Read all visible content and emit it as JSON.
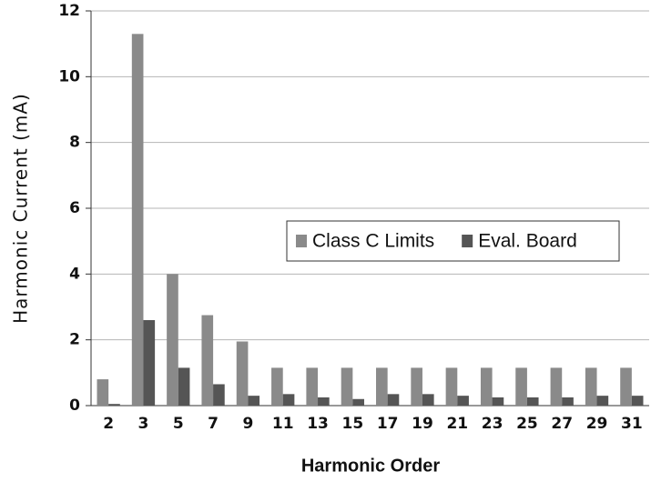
{
  "chart_data": {
    "type": "bar",
    "x_label": "Harmonic Order",
    "y_label": "Harmonic Current  (mA)",
    "categories": [
      "2",
      "3",
      "5",
      "7",
      "9",
      "11",
      "13",
      "15",
      "17",
      "19",
      "21",
      "23",
      "25",
      "27",
      "29",
      "31"
    ],
    "series": [
      {
        "name": "Class C Limits",
        "color": "#8a8a8a",
        "values": [
          0.8,
          11.3,
          4.0,
          2.75,
          1.95,
          1.15,
          1.15,
          1.15,
          1.15,
          1.15,
          1.15,
          1.15,
          1.15,
          1.15,
          1.15,
          1.15
        ]
      },
      {
        "name": "Eval. Board",
        "color": "#555555",
        "values": [
          0.05,
          2.6,
          1.15,
          0.65,
          0.3,
          0.35,
          0.25,
          0.2,
          0.35,
          0.35,
          0.3,
          0.25,
          0.25,
          0.25,
          0.3,
          0.3
        ]
      }
    ],
    "ylim": [
      0,
      12
    ],
    "yticks": [
      0,
      2,
      4,
      6,
      8,
      10,
      12
    ],
    "grid": true
  }
}
